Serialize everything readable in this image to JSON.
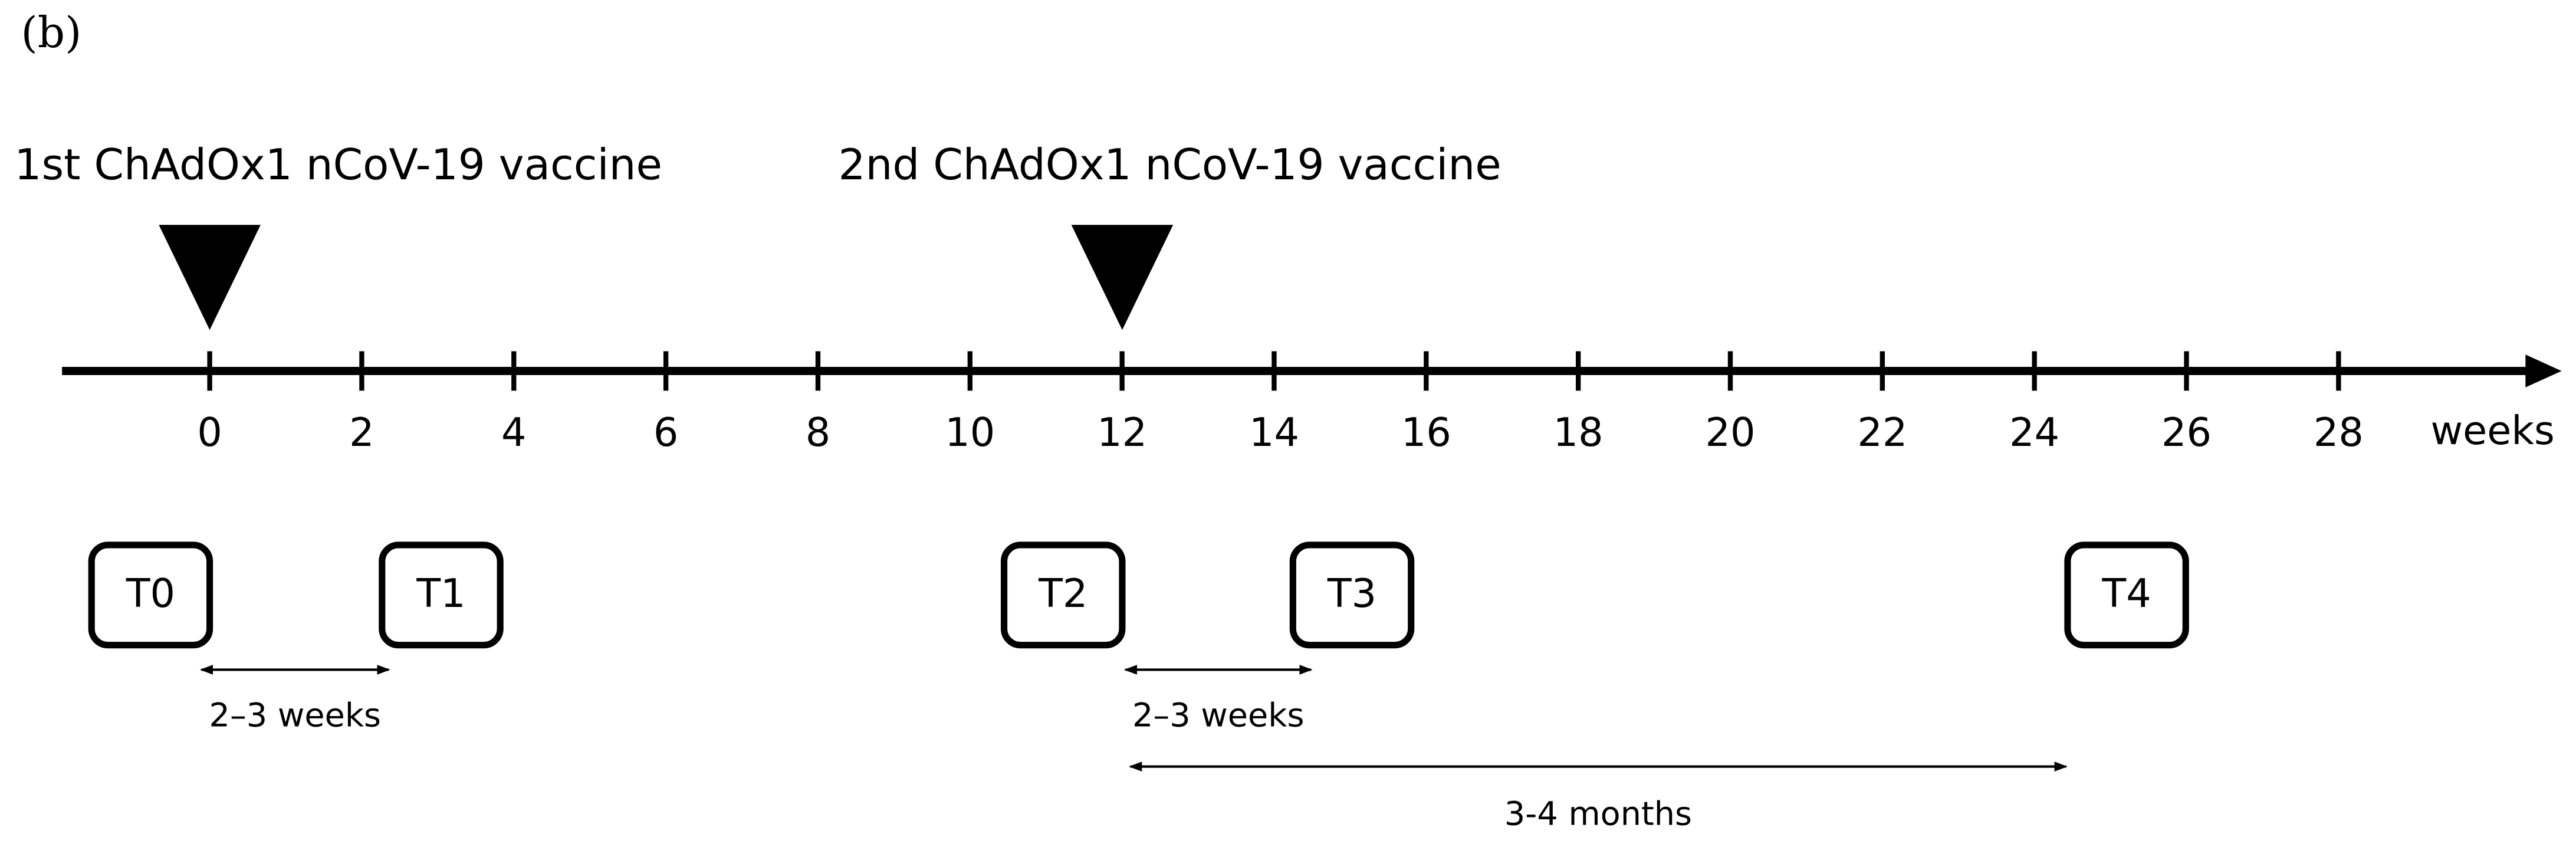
{
  "panel_label": "(b)",
  "events": [
    {
      "label": "1st ChAdOx1 nCoV-19 vaccine"
    },
    {
      "label": "2nd ChAdOx1 nCoV-19 vaccine"
    }
  ],
  "axis": {
    "ticks": [
      "0",
      "2",
      "4",
      "6",
      "8",
      "10",
      "12",
      "14",
      "16",
      "18",
      "20",
      "22",
      "24",
      "26",
      "28"
    ],
    "unit": "weeks"
  },
  "timepoints": [
    {
      "label": "T0"
    },
    {
      "label": "T1"
    },
    {
      "label": "T2"
    },
    {
      "label": "T3"
    },
    {
      "label": "T4"
    }
  ],
  "intervals": [
    {
      "label": "2–3 weeks"
    },
    {
      "label": "2–3 weeks"
    },
    {
      "label": "3-4 months"
    }
  ]
}
